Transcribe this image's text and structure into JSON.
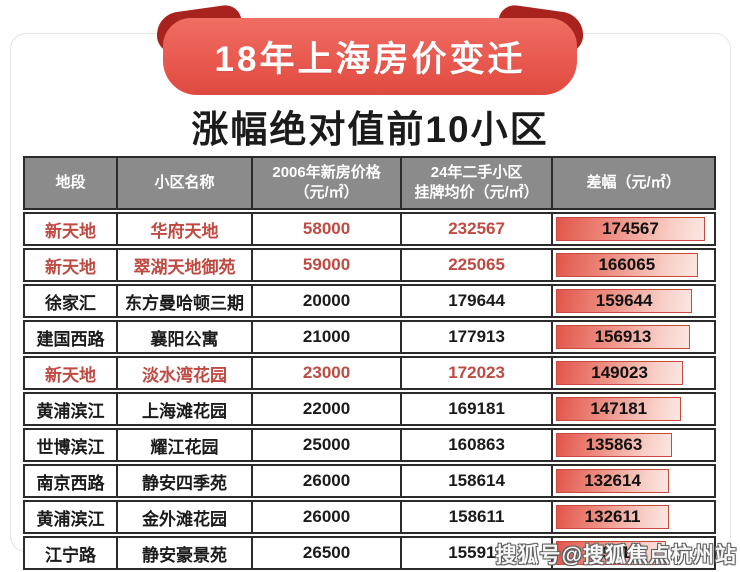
{
  "banner": {
    "title": "18年上海房价变迁"
  },
  "subtitle": "涨幅绝对值前10小区",
  "table": {
    "columns": [
      {
        "lines": [
          "地段"
        ]
      },
      {
        "lines": [
          "小区名称"
        ]
      },
      {
        "lines": [
          "2006年新房价格",
          "（元/㎡）"
        ]
      },
      {
        "lines": [
          "24年二手小区",
          "挂牌均价（元/㎡）"
        ]
      },
      {
        "lines": [
          "差幅（元/㎡）"
        ]
      }
    ],
    "rows": [
      {
        "district": "新天地",
        "community": "华府天地",
        "price2006": "58000",
        "price2024": "232567",
        "diff": 174567,
        "highlight": true
      },
      {
        "district": "新天地",
        "community": "翠湖天地御苑",
        "price2006": "59000",
        "price2024": "225065",
        "diff": 166065,
        "highlight": true
      },
      {
        "district": "徐家汇",
        "community": "东方曼哈顿三期",
        "price2006": "20000",
        "price2024": "179644",
        "diff": 159644,
        "highlight": false
      },
      {
        "district": "建国西路",
        "community": "襄阳公寓",
        "price2006": "21000",
        "price2024": "177913",
        "diff": 156913,
        "highlight": false
      },
      {
        "district": "新天地",
        "community": "淡水湾花园",
        "price2006": "23000",
        "price2024": "172023",
        "diff": 149023,
        "highlight": true
      },
      {
        "district": "黄浦滨江",
        "community": "上海滩花园",
        "price2006": "22000",
        "price2024": "169181",
        "diff": 147181,
        "highlight": false
      },
      {
        "district": "世博滨江",
        "community": "耀江花园",
        "price2006": "25000",
        "price2024": "160863",
        "diff": 135863,
        "highlight": false
      },
      {
        "district": "南京西路",
        "community": "静安四季苑",
        "price2006": "26000",
        "price2024": "158614",
        "diff": 132614,
        "highlight": false
      },
      {
        "district": "黄浦滨江",
        "community": "金外滩花园",
        "price2006": "26000",
        "price2024": "158611",
        "diff": 132611,
        "highlight": false
      },
      {
        "district": "江宁路",
        "community": "静安豪景苑",
        "price2006": "26500",
        "price2024": "155915",
        "diff": 129415,
        "highlight": false
      }
    ]
  },
  "watermark": "搜狐号@搜狐焦点杭州站",
  "colors": {
    "banner_red": "#e9594f",
    "banner_dark": "#a8231e",
    "header_gray": "#8b8b8b",
    "highlight_red": "#bf4a42",
    "border_dark": "#2b2b2b",
    "ink": "#1b1b1b",
    "bar_border": "#c64a40",
    "bar_start": "#e2554a",
    "bar_end": "#fbe7e2"
  },
  "chart_data": {
    "type": "table",
    "title": "18年上海房价变迁",
    "subtitle": "涨幅绝对值前10小区",
    "columns": [
      "地段",
      "小区名称",
      "2006年新房价格（元/㎡）",
      "24年二手小区挂牌均价（元/㎡）",
      "差幅（元/㎡）"
    ],
    "rows": [
      [
        "新天地",
        "华府天地",
        58000,
        232567,
        174567
      ],
      [
        "新天地",
        "翠湖天地御苑",
        59000,
        225065,
        166065
      ],
      [
        "徐家汇",
        "东方曼哈顿三期",
        20000,
        179644,
        159644
      ],
      [
        "建国西路",
        "襄阳公寓",
        21000,
        177913,
        156913
      ],
      [
        "新天地",
        "淡水湾花园",
        23000,
        172023,
        149023
      ],
      [
        "黄浦滨江",
        "上海滩花园",
        22000,
        169181,
        147181
      ],
      [
        "世博滨江",
        "耀江花园",
        25000,
        160863,
        135863
      ],
      [
        "南京西路",
        "静安四季苑",
        26000,
        158614,
        132614
      ],
      [
        "黄浦滨江",
        "金外滩花园",
        26000,
        158611,
        132611
      ],
      [
        "江宁路",
        "静安豪景苑",
        26500,
        155915,
        129415
      ]
    ],
    "notes": "差幅 column is rendered as a red gradient bar whose width is proportional to the value; rows 1, 2 and 5 are emphasized in red text",
    "bar_max": 174567,
    "highlight_rows": [
      0,
      1,
      4
    ]
  }
}
